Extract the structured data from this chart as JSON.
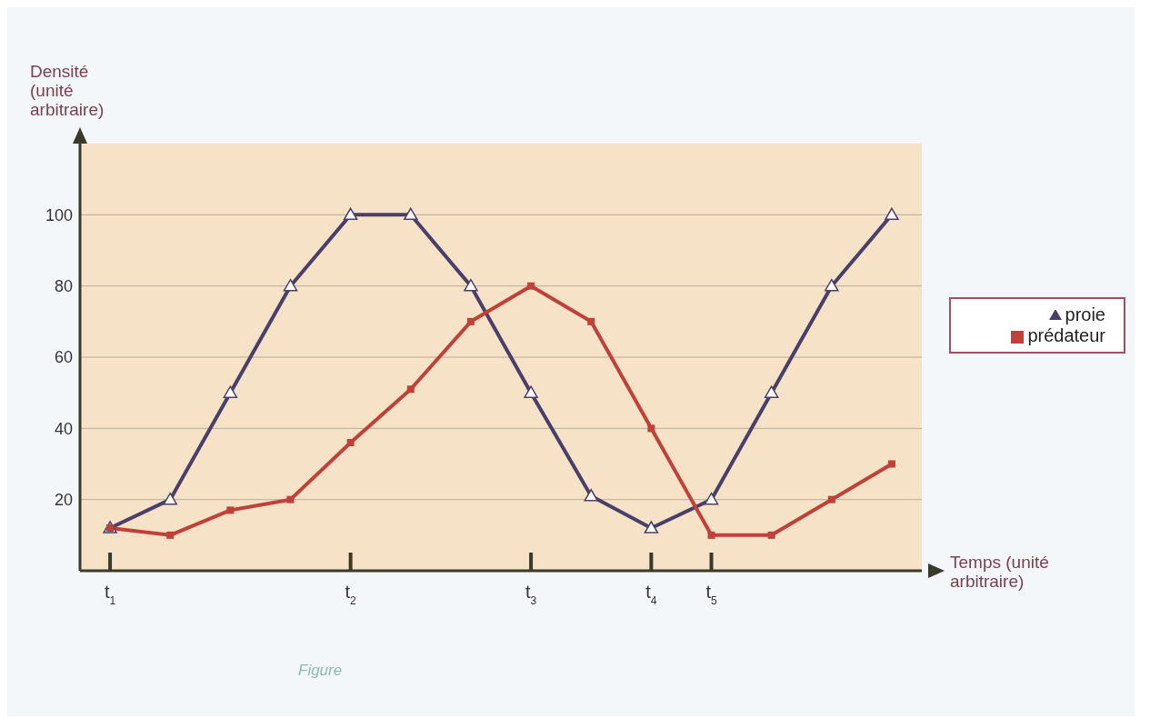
{
  "chart_data": {
    "type": "line",
    "xlabel": "Temps (unité arbitraire)",
    "ylabel": "Densité (unité arbitraire)",
    "categories": [
      "t$_{1}$",
      null,
      null,
      null,
      "t$_{2}$",
      null,
      null,
      "t$_{3}$",
      null,
      "t$_{4}$",
      "t$_{5}$",
      null,
      null,
      null
    ],
    "ylim": [
      0,
      120
    ],
    "yticks": [
      20,
      40,
      60,
      80,
      100
    ],
    "series": [
      {
        "name": "proie",
        "color": "#4a3f6b",
        "marker": "triangle",
        "values": [
          12,
          20,
          50,
          80,
          100,
          100,
          80,
          50,
          21,
          12,
          20,
          50,
          80,
          100
        ]
      },
      {
        "name": "prédateur",
        "color": "#c0403a",
        "marker": "square",
        "values": [
          12,
          10,
          17,
          20,
          36,
          51,
          70,
          80,
          70,
          40,
          10,
          10,
          20,
          30
        ]
      }
    ],
    "grid": "y",
    "legend": "right",
    "annotations": [
      "Figure"
    ]
  }
}
